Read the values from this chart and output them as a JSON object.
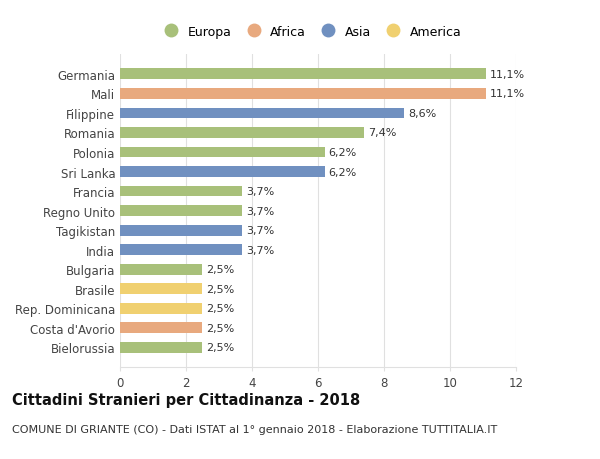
{
  "countries": [
    "Germania",
    "Mali",
    "Filippine",
    "Romania",
    "Polonia",
    "Sri Lanka",
    "Francia",
    "Regno Unito",
    "Tagikistan",
    "India",
    "Bulgaria",
    "Brasile",
    "Rep. Dominicana",
    "Costa d'Avorio",
    "Bielorussia"
  ],
  "values": [
    11.1,
    11.1,
    8.6,
    7.4,
    6.2,
    6.2,
    3.7,
    3.7,
    3.7,
    3.7,
    2.5,
    2.5,
    2.5,
    2.5,
    2.5
  ],
  "labels": [
    "11,1%",
    "11,1%",
    "8,6%",
    "7,4%",
    "6,2%",
    "6,2%",
    "3,7%",
    "3,7%",
    "3,7%",
    "3,7%",
    "2,5%",
    "2,5%",
    "2,5%",
    "2,5%",
    "2,5%"
  ],
  "continents": [
    "Europa",
    "Africa",
    "Asia",
    "Europa",
    "Europa",
    "Asia",
    "Europa",
    "Europa",
    "Asia",
    "Asia",
    "Europa",
    "America",
    "America",
    "Africa",
    "Europa"
  ],
  "colors": {
    "Europa": "#a8c07a",
    "Africa": "#e8a97e",
    "Asia": "#7090c0",
    "America": "#f0d070"
  },
  "legend_order": [
    "Europa",
    "Africa",
    "Asia",
    "America"
  ],
  "legend_colors": {
    "Europa": "#a8c07a",
    "Africa": "#e8a97e",
    "Asia": "#7090c0",
    "America": "#f0d070"
  },
  "title": "Cittadini Stranieri per Cittadinanza - 2018",
  "subtitle": "COMUNE DI GRIANTE (CO) - Dati ISTAT al 1° gennaio 2018 - Elaborazione TUTTITALIA.IT",
  "xlim": [
    0,
    12
  ],
  "xticks": [
    0,
    2,
    4,
    6,
    8,
    10,
    12
  ],
  "background_color": "#ffffff",
  "grid_color": "#e0e0e0",
  "bar_height": 0.55,
  "label_fontsize": 8.0,
  "title_fontsize": 10.5,
  "subtitle_fontsize": 8.0,
  "tick_fontsize": 8.5,
  "legend_fontsize": 9.0
}
